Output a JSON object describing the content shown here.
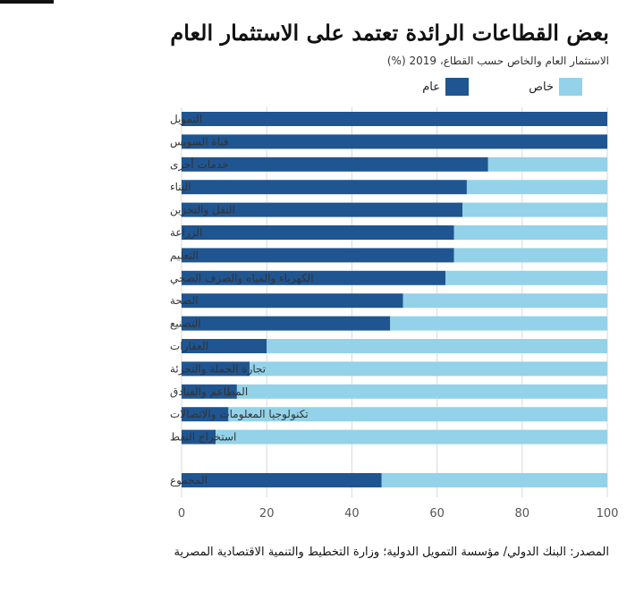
{
  "title": "بعض القطاعات الرائدة تعتمد على الاستثمار العام",
  "subtitle": "الاستثمار العام والخاص حسب القطاع، 2019 (%)",
  "source": "المصدر: البنك الدولي/ مؤسسة التمويل الدولية؛ وزارة التخطيط والتنمية الاقتصادية المصرية",
  "colors": {
    "public": "#1f5591",
    "private": "#93d2e8"
  },
  "chart_data": {
    "type": "bar",
    "orientation": "horizontal",
    "stacked": true,
    "categories": [
      "التمويل",
      "قناة السويس",
      "خدمات أخرى",
      "البناء",
      "النقل والتخزين",
      "الزراعة",
      "التعليم",
      "الكهرباء والمياه والصرف الصحي",
      "الصحة",
      "التصنيع",
      "العقارات",
      "تجارة الجملة والتجزئة",
      "المطاعم والفنادق",
      "تكنولوجيا المعلومات والاتصالات",
      "استخراج النفط",
      "المجموع"
    ],
    "series": [
      {
        "name": "عام",
        "key": "public",
        "values": [
          100,
          100,
          72,
          67,
          66,
          64,
          64,
          62,
          52,
          49,
          20,
          16,
          13,
          11,
          8,
          47
        ]
      },
      {
        "name": "خاص",
        "key": "private",
        "values": [
          0,
          0,
          28,
          33,
          34,
          36,
          36,
          38,
          48,
          51,
          80,
          84,
          87,
          89,
          92,
          53
        ]
      }
    ],
    "xlim": [
      0,
      100
    ],
    "xticks": [
      0,
      20,
      40,
      60,
      80,
      100
    ],
    "grid": true,
    "legend_position": "top-right"
  }
}
